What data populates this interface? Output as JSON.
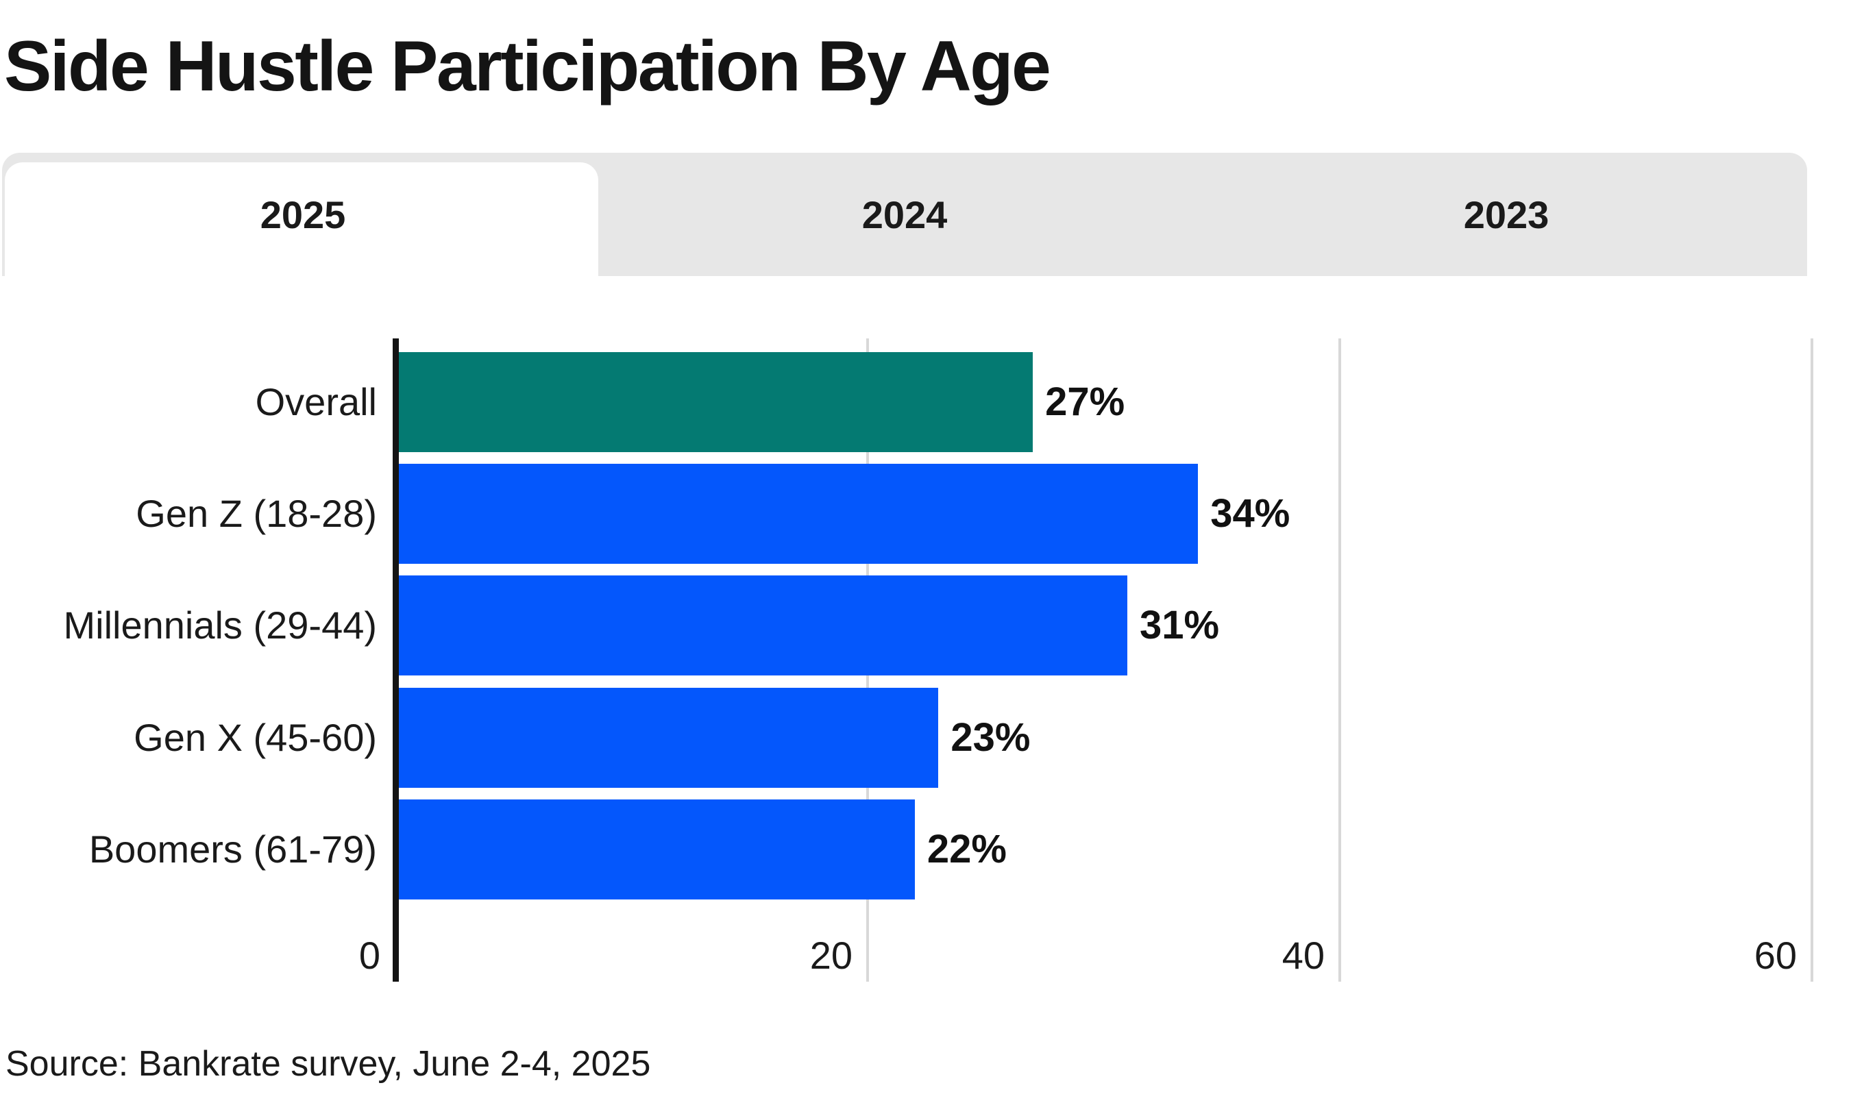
{
  "title": "Side Hustle Participation By Age",
  "tabs": [
    {
      "label": "2025",
      "active": true
    },
    {
      "label": "2024",
      "active": false
    },
    {
      "label": "2023",
      "active": false
    }
  ],
  "source_note": "Source: Bankrate survey, June 2-4, 2025",
  "colors": {
    "highlight_teal": "#047A72",
    "bar_blue": "#0457FC",
    "tab_bar_gray": "#E7E7E7",
    "gridline_gray": "#D8D8D8",
    "axis_black": "#141414",
    "text_black": "#1A1A1A"
  },
  "chart_data": {
    "type": "bar",
    "orientation": "horizontal",
    "title": "Side Hustle Participation By Age",
    "categories": [
      "Overall",
      "Gen Z (18-28)",
      "Millennials (29-44)",
      "Gen X (45-60)",
      "Boomers (61-79)"
    ],
    "values": [
      27,
      34,
      31,
      23,
      22
    ],
    "value_labels": [
      "27%",
      "34%",
      "31%",
      "23%",
      "22%"
    ],
    "bar_colors": [
      "#047A72",
      "#0457FC",
      "#0457FC",
      "#0457FC",
      "#0457FC"
    ],
    "xlabel": "",
    "ylabel": "",
    "xlim": [
      0,
      60
    ],
    "x_ticks": [
      0,
      20,
      40,
      60
    ],
    "grid": "vertical",
    "legend": "none"
  }
}
